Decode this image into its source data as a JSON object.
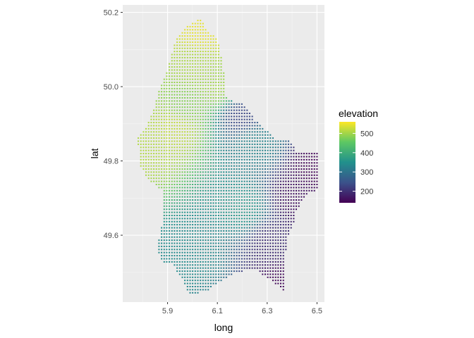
{
  "chart_data": {
    "type": "scatter",
    "title": "",
    "xlabel": "long",
    "ylabel": "lat",
    "xlim": [
      5.72,
      6.53
    ],
    "ylim": [
      49.42,
      50.22
    ],
    "x_ticks": [
      5.9,
      6.1,
      6.3,
      6.5
    ],
    "y_ticks": [
      49.6,
      49.8,
      50.0,
      50.2
    ],
    "x_tick_labels": [
      "5.9",
      "6.1",
      "6.3",
      "6.5"
    ],
    "y_tick_labels": [
      "49.6",
      "49.8",
      "50.0",
      "50.2"
    ],
    "grid": true,
    "legend": {
      "title": "elevation",
      "placement": "right",
      "min": 140,
      "max": 560,
      "breaks": [
        200,
        300,
        400,
        500
      ],
      "break_labels": [
        "200",
        "300",
        "400",
        "500"
      ],
      "palette": [
        "#440154",
        "#3b528b",
        "#21908c",
        "#5dc863",
        "#fde725"
      ]
    },
    "point_spacing": {
      "dlong": 0.0104,
      "dlat": 0.00833
    },
    "outline": [
      [
        6.02,
        50.18
      ],
      [
        6.04,
        50.18
      ],
      [
        6.06,
        50.15
      ],
      [
        6.1,
        50.13
      ],
      [
        6.12,
        50.07
      ],
      [
        6.13,
        50.02
      ],
      [
        6.13,
        49.98
      ],
      [
        6.16,
        49.96
      ],
      [
        6.19,
        49.96
      ],
      [
        6.22,
        49.94
      ],
      [
        6.25,
        49.91
      ],
      [
        6.3,
        49.88
      ],
      [
        6.33,
        49.86
      ],
      [
        6.39,
        49.86
      ],
      [
        6.42,
        49.82
      ],
      [
        6.5,
        49.82
      ],
      [
        6.5,
        49.72
      ],
      [
        6.46,
        49.71
      ],
      [
        6.42,
        49.67
      ],
      [
        6.4,
        49.62
      ],
      [
        6.38,
        49.59
      ],
      [
        6.37,
        49.53
      ],
      [
        6.37,
        49.45
      ],
      [
        6.33,
        49.47
      ],
      [
        6.29,
        49.49
      ],
      [
        6.25,
        49.51
      ],
      [
        6.18,
        49.5
      ],
      [
        6.12,
        49.48
      ],
      [
        6.08,
        49.46
      ],
      [
        6.06,
        49.45
      ],
      [
        5.99,
        49.44
      ],
      [
        5.95,
        49.49
      ],
      [
        5.92,
        49.52
      ],
      [
        5.87,
        49.53
      ],
      [
        5.86,
        49.58
      ],
      [
        5.88,
        49.63
      ],
      [
        5.88,
        49.72
      ],
      [
        5.82,
        49.75
      ],
      [
        5.79,
        49.79
      ],
      [
        5.78,
        49.86
      ],
      [
        5.83,
        49.91
      ],
      [
        5.86,
        49.98
      ],
      [
        5.9,
        50.05
      ],
      [
        5.93,
        50.12
      ],
      [
        5.97,
        50.16
      ]
    ],
    "elevation_peaks": [
      {
        "long": 6.03,
        "lat": 50.15,
        "elevation": 545
      },
      {
        "long": 5.82,
        "lat": 49.83,
        "elevation": 510
      },
      {
        "long": 5.93,
        "lat": 49.89,
        "elevation": 520
      },
      {
        "long": 6.0,
        "lat": 50.06,
        "elevation": 505
      },
      {
        "long": 6.1,
        "lat": 50.0,
        "elevation": 500
      },
      {
        "long": 5.97,
        "lat": 49.95,
        "elevation": 480
      },
      {
        "long": 6.2,
        "lat": 49.67,
        "elevation": 360
      },
      {
        "long": 6.0,
        "lat": 49.55,
        "elevation": 340
      },
      {
        "long": 6.25,
        "lat": 49.85,
        "elevation": 330
      }
    ],
    "elevation_lows": [
      {
        "long": 6.5,
        "lat": 49.78,
        "elevation": 145
      },
      {
        "long": 6.37,
        "lat": 49.47,
        "elevation": 150
      },
      {
        "long": 6.42,
        "lat": 49.7,
        "elevation": 165
      },
      {
        "long": 6.32,
        "lat": 49.58,
        "elevation": 200
      },
      {
        "long": 6.2,
        "lat": 49.92,
        "elevation": 230
      }
    ]
  }
}
